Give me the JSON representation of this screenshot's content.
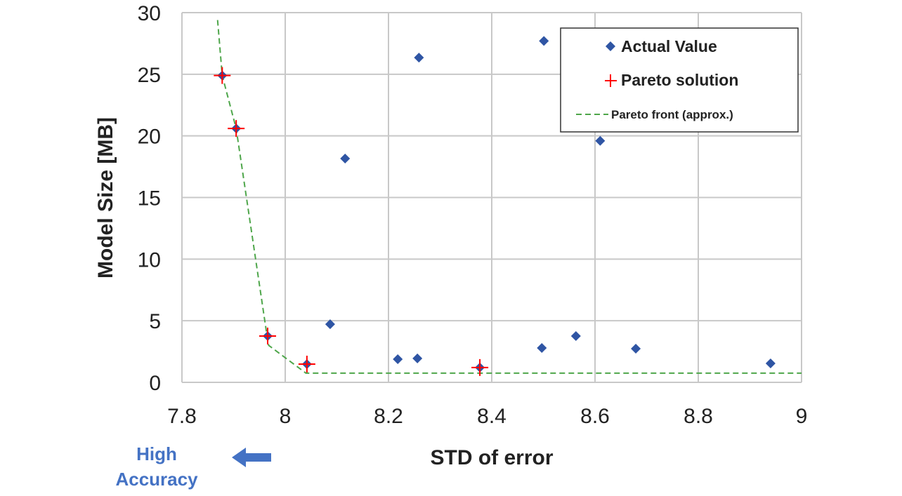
{
  "chart_data": {
    "type": "scatter",
    "xlabel": "STD of error",
    "ylabel": "Model Size [MB]",
    "xlim": [
      7.8,
      9
    ],
    "ylim": [
      0,
      30
    ],
    "xticks": [
      "7.8",
      "8",
      "8.2",
      "8.4",
      "8.6",
      "8.8",
      "9"
    ],
    "yticks": [
      "0",
      "5",
      "10",
      "15",
      "20",
      "25",
      "30"
    ],
    "xtick_values": [
      7.8,
      8.0,
      8.2,
      8.4,
      8.6,
      8.8,
      9.0
    ],
    "ytick_values": [
      0,
      5,
      10,
      15,
      20,
      25,
      30
    ],
    "grid": true,
    "legend_position": "top-right",
    "series": [
      {
        "name": "Actual Value",
        "marker": "diamond",
        "color": "#2f55a4",
        "points": [
          [
            7.878,
            24.9
          ],
          [
            7.905,
            20.6
          ],
          [
            7.966,
            3.76
          ],
          [
            8.042,
            1.48
          ],
          [
            8.087,
            4.72
          ],
          [
            8.116,
            18.16
          ],
          [
            8.218,
            1.88
          ],
          [
            8.256,
            1.94
          ],
          [
            8.259,
            26.35
          ],
          [
            8.377,
            1.2
          ],
          [
            8.497,
            2.79
          ],
          [
            8.501,
            27.7
          ],
          [
            8.563,
            3.76
          ],
          [
            8.61,
            19.6
          ],
          [
            8.679,
            2.73
          ],
          [
            8.94,
            1.54
          ]
        ]
      },
      {
        "name": "Pareto solution",
        "marker": "plus",
        "color": "#ff0000",
        "points": [
          [
            7.878,
            24.9
          ],
          [
            7.905,
            20.6
          ],
          [
            7.966,
            3.76
          ],
          [
            8.042,
            1.48
          ],
          [
            8.377,
            1.2
          ]
        ]
      },
      {
        "name": "Pareto front (approx.)",
        "marker": "dashed-line",
        "color": "#4ea64a",
        "points": [
          [
            7.869,
            29.4
          ],
          [
            7.878,
            24.9
          ],
          [
            7.905,
            20.6
          ],
          [
            7.964,
            4.0
          ],
          [
            7.968,
            3.0
          ],
          [
            8.04,
            0.75
          ],
          [
            9.0,
            0.75
          ]
        ]
      }
    ],
    "annotation": {
      "text_line1": "High",
      "text_line2": "Accuracy",
      "color": "#4472c4",
      "arrow": "left-arrow"
    }
  }
}
